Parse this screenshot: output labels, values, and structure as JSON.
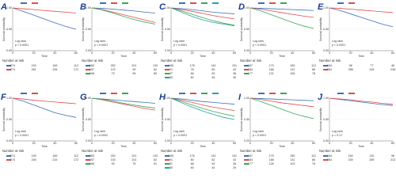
{
  "chart_data": [
    {
      "label": "A",
      "type": "line",
      "x": [
        0,
        10,
        20,
        30,
        40,
        50,
        60
      ],
      "xlim": [
        0,
        60
      ],
      "xticks": [
        0,
        20,
        40,
        60
      ],
      "ylim": [
        0,
        1
      ],
      "yticks": [
        {
          "value": 0,
          "label": "0.00"
        },
        {
          "value": 0.5,
          "label": "0.50"
        },
        {
          "value": 1,
          "label": "1.00"
        }
      ],
      "xlabel": "Time",
      "ylabel": "Survival probability",
      "test_label": "Log rank",
      "p_label": "p < 0.0001",
      "risk_title": "Number at risk",
      "series": [
        {
          "color": "#3b6fb6",
          "values": [
            1,
            0.92,
            0.83,
            0.74,
            0.65,
            0.57,
            0.5
          ],
          "risk": [
            274,
            193,
            169,
            112
          ]
        },
        {
          "color": "#e04b4b",
          "values": [
            1,
            0.98,
            0.96,
            0.94,
            0.92,
            0.9,
            0.88
          ],
          "risk": [
            274,
            261,
            226,
            172
          ]
        }
      ]
    },
    {
      "label": "B",
      "type": "line",
      "x": [
        0,
        10,
        20,
        30,
        40,
        50,
        60
      ],
      "xlim": [
        0,
        60
      ],
      "xticks": [
        0,
        20,
        40,
        60
      ],
      "ylim": [
        0,
        1
      ],
      "yticks": [
        {
          "value": 0,
          "label": "0.00"
        },
        {
          "value": 0.5,
          "label": "0.50"
        },
        {
          "value": 1,
          "label": "1.00"
        }
      ],
      "xlabel": "Time",
      "ylabel": "Survival probability",
      "test_label": "Log rank",
      "p_label": "p < 0.0001",
      "risk_title": "Number at risk",
      "series": [
        {
          "color": "#3b6fb6",
          "values": [
            1,
            0.99,
            0.97,
            0.95,
            0.93,
            0.9,
            0.88
          ],
          "risk": [
            283,
            252,
            201,
            133
          ]
        },
        {
          "color": "#e04b4b",
          "values": [
            1,
            0.96,
            0.9,
            0.84,
            0.78,
            0.72,
            0.66
          ],
          "risk": [
            157,
            123,
            99,
            62
          ]
        },
        {
          "color": "#3aa655",
          "values": [
            1,
            0.95,
            0.88,
            0.8,
            0.73,
            0.67,
            0.62
          ],
          "risk": [
            108,
            79,
            95,
            89
          ]
        }
      ]
    },
    {
      "label": "C",
      "type": "line",
      "x": [
        0,
        10,
        20,
        30,
        40,
        50,
        60
      ],
      "xlim": [
        0,
        60
      ],
      "xticks": [
        0,
        20,
        40,
        60
      ],
      "ylim": [
        0,
        1
      ],
      "yticks": [
        {
          "value": 0,
          "label": "0.00"
        },
        {
          "value": 0.5,
          "label": "0.50"
        },
        {
          "value": 1,
          "label": "1.00"
        }
      ],
      "xlabel": "Time",
      "ylabel": "Survival probability",
      "test_label": "Log rank",
      "p_label": "p < 0.0001",
      "risk_title": "Number at risk",
      "series": [
        {
          "color": "#3b6fb6",
          "values": [
            1,
            0.98,
            0.96,
            0.93,
            0.9,
            0.88,
            0.86
          ],
          "risk": [
            195,
            178,
            143,
            101
          ]
        },
        {
          "color": "#e04b4b",
          "values": [
            1,
            0.96,
            0.92,
            0.87,
            0.82,
            0.78,
            0.74
          ],
          "risk": [
            91,
            78,
            60,
            43
          ]
        },
        {
          "color": "#3aa655",
          "values": [
            1,
            0.93,
            0.85,
            0.77,
            0.7,
            0.64,
            0.6
          ],
          "risk": [
            87,
            66,
            53,
            38
          ]
        },
        {
          "color": "#2aa0a0",
          "values": [
            1,
            0.9,
            0.8,
            0.72,
            0.66,
            0.62,
            0.58
          ],
          "risk": [
            80,
            62,
            46,
            30
          ]
        }
      ]
    },
    {
      "label": "D",
      "type": "line",
      "x": [
        0,
        10,
        20,
        30,
        40,
        50,
        60
      ],
      "xlim": [
        0,
        60
      ],
      "xticks": [
        0,
        20,
        40,
        60
      ],
      "ylim": [
        0,
        1
      ],
      "yticks": [
        {
          "value": 0,
          "label": "0.00"
        },
        {
          "value": 0.5,
          "label": "0.50"
        },
        {
          "value": 1,
          "label": "1.00"
        }
      ],
      "xlabel": "Time",
      "ylabel": "Survival probability",
      "test_label": "Log rank",
      "p_label": "p < 0.0001",
      "risk_title": "Number at risk",
      "series": [
        {
          "color": "#3b6fb6",
          "values": [
            1,
            0.99,
            0.98,
            0.97,
            0.96,
            0.95,
            0.94
          ],
          "risk": [
            187,
            173,
            150,
            112
          ]
        },
        {
          "color": "#e04b4b",
          "values": [
            1,
            0.97,
            0.93,
            0.89,
            0.85,
            0.81,
            0.78
          ],
          "risk": [
            184,
            166,
            131,
            86
          ]
        },
        {
          "color": "#3aa655",
          "values": [
            1,
            0.93,
            0.84,
            0.75,
            0.66,
            0.58,
            0.52
          ],
          "risk": [
            177,
            121,
            106,
            78
          ]
        }
      ]
    },
    {
      "label": "E",
      "type": "line",
      "x": [
        0,
        10,
        20,
        30,
        40,
        50,
        60
      ],
      "xlim": [
        0,
        60
      ],
      "xticks": [
        0,
        20,
        40,
        60
      ],
      "ylim": [
        0,
        1
      ],
      "yticks": [
        {
          "value": 0,
          "label": "0.00"
        },
        {
          "value": 0.5,
          "label": "0.50"
        },
        {
          "value": 1,
          "label": "1.00"
        }
      ],
      "xlabel": "Time",
      "ylabel": "Survival probability",
      "test_label": "Log rank",
      "p_label": "p < 0.0001",
      "risk_title": "Number at risk",
      "series": [
        {
          "color": "#3b6fb6",
          "values": [
            1,
            0.94,
            0.86,
            0.78,
            0.7,
            0.62,
            0.56
          ],
          "risk": [
            184,
            96,
            77,
            46
          ]
        },
        {
          "color": "#e04b4b",
          "values": [
            1,
            0.99,
            0.97,
            0.95,
            0.93,
            0.91,
            0.89
          ],
          "risk": [
            364,
            358,
            318,
            238
          ]
        }
      ]
    },
    {
      "label": "F",
      "type": "line",
      "x": [
        0,
        10,
        20,
        30,
        40,
        50,
        60
      ],
      "xlim": [
        0,
        60
      ],
      "xticks": [
        0,
        20,
        40,
        60
      ],
      "ylim": [
        0,
        1
      ],
      "yticks": [
        {
          "value": 0,
          "label": "0.00"
        },
        {
          "value": 0.5,
          "label": "0.50"
        },
        {
          "value": 1,
          "label": "1.00"
        }
      ],
      "xlabel": "Time",
      "ylabel": "Survival probability",
      "test_label": "Log rank",
      "p_label": "p < 0.0001",
      "risk_title": "Number at risk",
      "series": [
        {
          "color": "#3b6fb6",
          "values": [
            1,
            0.93,
            0.84,
            0.75,
            0.66,
            0.6,
            0.55
          ],
          "risk": [
            274,
            193,
            169,
            112
          ]
        },
        {
          "color": "#e04b4b",
          "values": [
            1,
            0.98,
            0.95,
            0.93,
            0.91,
            0.89,
            0.87
          ],
          "risk": [
            274,
            245,
            215,
            172
          ]
        }
      ]
    },
    {
      "label": "G",
      "type": "line",
      "x": [
        0,
        10,
        20,
        30,
        40,
        50,
        60
      ],
      "xlim": [
        0,
        60
      ],
      "xticks": [
        0,
        20,
        40,
        60
      ],
      "ylim": [
        0,
        1
      ],
      "yticks": [
        {
          "value": 0,
          "label": "0.00"
        },
        {
          "value": 0.5,
          "label": "0.50"
        },
        {
          "value": 1,
          "label": "1.00"
        }
      ],
      "xlabel": "Time",
      "ylabel": "Survival probability",
      "test_label": "Log rank",
      "p_label": "p = 0.0002",
      "risk_title": "Number at risk",
      "series": [
        {
          "color": "#3b6fb6",
          "values": [
            1,
            0.98,
            0.96,
            0.94,
            0.92,
            0.9,
            0.88
          ],
          "risk": [
            283,
            252,
            201,
            133
          ]
        },
        {
          "color": "#e04b4b",
          "values": [
            1,
            0.96,
            0.91,
            0.86,
            0.81,
            0.76,
            0.72
          ],
          "risk": [
            157,
            130,
            101,
            62
          ]
        },
        {
          "color": "#3aa655",
          "values": [
            1,
            0.97,
            0.93,
            0.88,
            0.84,
            0.8,
            0.77
          ],
          "risk": [
            108,
            93,
            75,
            51
          ]
        }
      ]
    },
    {
      "label": "H",
      "type": "line",
      "x": [
        0,
        10,
        20,
        30,
        40,
        50,
        60
      ],
      "xlim": [
        0,
        60
      ],
      "xticks": [
        0,
        20,
        40,
        60
      ],
      "ylim": [
        0,
        1
      ],
      "yticks": [
        {
          "value": 0,
          "label": "0.00"
        },
        {
          "value": 0.5,
          "label": "0.50"
        },
        {
          "value": 1,
          "label": "1.00"
        }
      ],
      "xlabel": "Time",
      "ylabel": "Survival probability",
      "test_label": "Log rank",
      "p_label": "p < 0.0001",
      "risk_title": "Number at risk",
      "series": [
        {
          "color": "#3b6fb6",
          "values": [
            1,
            0.98,
            0.95,
            0.92,
            0.9,
            0.88,
            0.86
          ],
          "risk": [
            195,
            178,
            143,
            101
          ]
        },
        {
          "color": "#e04b4b",
          "values": [
            1,
            0.95,
            0.9,
            0.84,
            0.79,
            0.75,
            0.71
          ],
          "risk": [
            91,
            80,
            62,
            43
          ]
        },
        {
          "color": "#3aa655",
          "values": [
            1,
            0.92,
            0.84,
            0.76,
            0.69,
            0.63,
            0.58
          ],
          "risk": [
            87,
            68,
            53,
            38
          ]
        },
        {
          "color": "#2aa0a0",
          "values": [
            1,
            0.89,
            0.79,
            0.7,
            0.62,
            0.55,
            0.5
          ],
          "risk": [
            80,
            60,
            44,
            29
          ]
        }
      ]
    },
    {
      "label": "I",
      "type": "line",
      "x": [
        0,
        10,
        20,
        30,
        40,
        50,
        60
      ],
      "xlim": [
        0,
        60
      ],
      "xticks": [
        0,
        20,
        40,
        60
      ],
      "ylim": [
        0,
        1
      ],
      "yticks": [
        {
          "value": 0,
          "label": "0.00"
        },
        {
          "value": 0.5,
          "label": "0.50"
        },
        {
          "value": 1,
          "label": "1.00"
        }
      ],
      "xlabel": "Time",
      "ylabel": "Survival probability",
      "test_label": "Log rank",
      "p_label": "p < 0.0001",
      "risk_title": "Number at risk",
      "series": [
        {
          "color": "#3b6fb6",
          "values": [
            1,
            0.99,
            0.98,
            0.97,
            0.96,
            0.95,
            0.94
          ],
          "risk": [
            187,
            175,
            150,
            112
          ]
        },
        {
          "color": "#e04b4b",
          "values": [
            1,
            0.97,
            0.93,
            0.89,
            0.86,
            0.83,
            0.8
          ],
          "risk": [
            184,
            166,
            131,
            86
          ]
        },
        {
          "color": "#3aa655",
          "values": [
            1,
            0.92,
            0.83,
            0.74,
            0.65,
            0.58,
            0.52
          ],
          "risk": [
            177,
            126,
            103,
            76
          ]
        }
      ]
    },
    {
      "label": "J",
      "type": "line",
      "x": [
        0,
        10,
        20,
        30,
        40,
        50,
        60
      ],
      "xlim": [
        0,
        60
      ],
      "xticks": [
        0,
        20,
        40,
        60
      ],
      "ylim": [
        0,
        1
      ],
      "yticks": [
        {
          "value": 0,
          "label": "0.00"
        },
        {
          "value": 0.5,
          "label": "0.50"
        },
        {
          "value": 1,
          "label": "1.00"
        }
      ],
      "xlabel": "Time",
      "ylabel": "Survival probability",
      "test_label": "Log rank",
      "p_label": "p = 0.17",
      "risk_title": "Number at risk",
      "series": [
        {
          "color": "#3b6fb6",
          "values": [
            1,
            0.97,
            0.94,
            0.91,
            0.88,
            0.85,
            0.83
          ],
          "risk": [
            184,
            160,
            132,
            96
          ]
        },
        {
          "color": "#e04b4b",
          "values": [
            1,
            0.98,
            0.96,
            0.93,
            0.91,
            0.88,
            0.86
          ],
          "risk": [
            364,
            339,
            289,
            212
          ]
        }
      ]
    }
  ]
}
